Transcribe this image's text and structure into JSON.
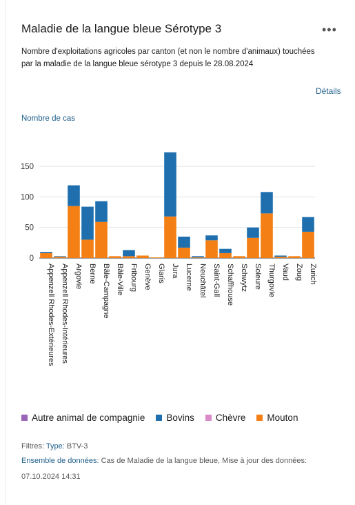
{
  "header": {
    "title": "Maladie de la langue bleue Sérotype 3",
    "subtitle": "Nombre d'exploitations agricoles par canton (et non le nombre d'animaux) touchées par la maladie de la langue bleue sérotype 3 depuis le 28.08.2024",
    "menu_label": "•••",
    "details_label": "Détails"
  },
  "chart_data": {
    "type": "bar",
    "stacked": true,
    "ylabel": "Nombre de cas",
    "ylim": [
      0,
      175
    ],
    "yticks": [
      0,
      50,
      100,
      150
    ],
    "grid": true,
    "legend_position": "bottom",
    "categories": [
      "Appenzell Rhodes-Extérieures",
      "Appenzell Rhodes-Intérieures",
      "Argovie",
      "Berne",
      "Bâle-Campagne",
      "Bâle-Ville",
      "Fribourg",
      "Genève",
      "Glaris",
      "Jura",
      "Lucerne",
      "Neuchâtel",
      "Saint-Gall",
      "Schaffhouse",
      "Schwytz",
      "Soleure",
      "Thurgovie",
      "Vaud",
      "Zoug",
      "Zurich"
    ],
    "series": [
      {
        "name": "Autre animal de compagnie",
        "color": "#9a65b8",
        "values": [
          0,
          0,
          0,
          0,
          0,
          0,
          0,
          0,
          0,
          0,
          0,
          0,
          0,
          0,
          0,
          0,
          0,
          0,
          0,
          0
        ]
      },
      {
        "name": "Bovins",
        "color": "#1f6fae",
        "values": [
          2,
          1,
          34,
          54,
          34,
          0,
          10,
          0,
          0,
          105,
          18,
          2,
          8,
          7,
          0,
          17,
          35,
          2,
          0,
          24
        ]
      },
      {
        "name": "Chèvre",
        "color": "#d98ac8",
        "values": [
          0,
          0,
          0,
          0,
          0,
          0,
          0,
          0,
          0,
          0,
          0,
          0,
          0,
          0,
          0,
          0,
          0,
          0,
          0,
          0
        ]
      },
      {
        "name": "Mouton",
        "color": "#f47f14",
        "values": [
          8,
          2,
          85,
          30,
          59,
          3,
          3,
          4,
          1,
          68,
          17,
          1,
          29,
          8,
          3,
          33,
          73,
          2,
          3,
          43
        ]
      }
    ]
  },
  "footer": {
    "filters_label": "Filtres:",
    "type_label": "Type:",
    "type_value": "BTV-3",
    "dataset_label": "Ensemble de données:",
    "dataset_value": "Cas de Maladie de la langue bleue, Mise à jour des données:",
    "update_date": "07.10.2024 14:31"
  }
}
